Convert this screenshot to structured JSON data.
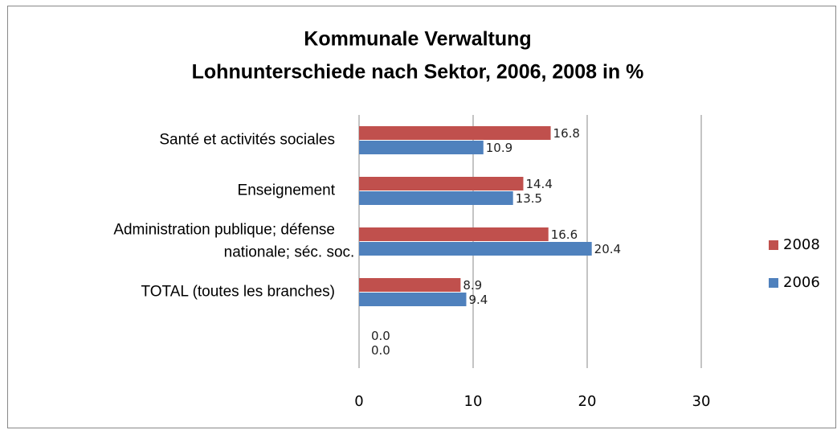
{
  "chart_data": {
    "type": "barh",
    "title": "Kommunale Verwaltung",
    "subtitle": "Lohnunterschiede nach Sektor, 2006, 2008 in %",
    "categories": [
      "Santé et activités sociales",
      "Enseignement",
      "Administration publique; défense\nnationale;  séc. soc.",
      "TOTAL (toutes les branches)",
      null
    ],
    "series": [
      {
        "name": "2008",
        "color": "#c0504d",
        "values": [
          16.8,
          14.4,
          16.6,
          8.9,
          0
        ],
        "value_labels": [
          "16.8",
          "14.4",
          "16.6",
          "8.9",
          "0.0"
        ]
      },
      {
        "name": "2006",
        "color": "#4f81bd",
        "values": [
          10.9,
          13.5,
          20.4,
          9.4,
          0
        ],
        "value_labels": [
          "10.9",
          "13.5",
          "20.4",
          "9.4",
          "0.0"
        ]
      }
    ],
    "xlim": [
      0,
      30
    ],
    "xticks": [
      0,
      10,
      20,
      30
    ],
    "grid": true,
    "legend": "right"
  }
}
